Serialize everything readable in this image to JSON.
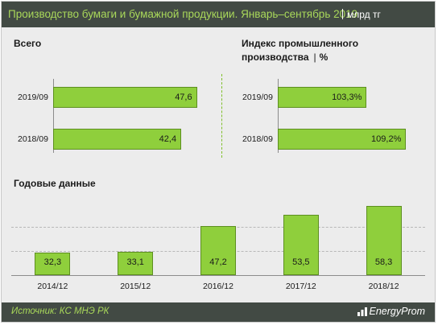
{
  "header": {
    "title": "Производство бумаги и бумажной продукции. Январь–сентябрь 2019",
    "unit": "млрд тг"
  },
  "colors": {
    "header_bg": "#424a44",
    "accent": "#a9d85a",
    "bar_fill": "#8fcf3c",
    "panel_bg": "#ececec"
  },
  "chart_data": [
    {
      "type": "bar",
      "orientation": "horizontal",
      "title": "Всего",
      "categories": [
        "2019/09",
        "2018/09"
      ],
      "values": [
        47.6,
        42.4
      ],
      "value_labels": [
        "47,6",
        "42,4"
      ],
      "xlim": [
        0,
        48.5
      ]
    },
    {
      "type": "bar",
      "orientation": "horizontal",
      "title": "Индекс промышленного производства",
      "title_unit": "%",
      "categories": [
        "2019/09",
        "2018/09"
      ],
      "values": [
        103.3,
        109.2
      ],
      "value_labels": [
        "103,3%",
        "109,2%"
      ],
      "xlim": [
        90,
        110
      ]
    },
    {
      "type": "bar",
      "orientation": "vertical",
      "title": "Годовые данные",
      "categories": [
        "2014/12",
        "2015/12",
        "2016/12",
        "2017/12",
        "2018/12"
      ],
      "values": [
        32.3,
        33.1,
        47.2,
        53.5,
        58.3
      ],
      "value_labels": [
        "32,3",
        "33,1",
        "47,2",
        "53,5",
        "58,3"
      ],
      "ylim": [
        20,
        60
      ],
      "grid": true
    }
  ],
  "footer": {
    "source": "Источник: КС МНЭ РК",
    "brand": "EnergyProm",
    "brand_icon": "energyprom-logo-icon"
  }
}
